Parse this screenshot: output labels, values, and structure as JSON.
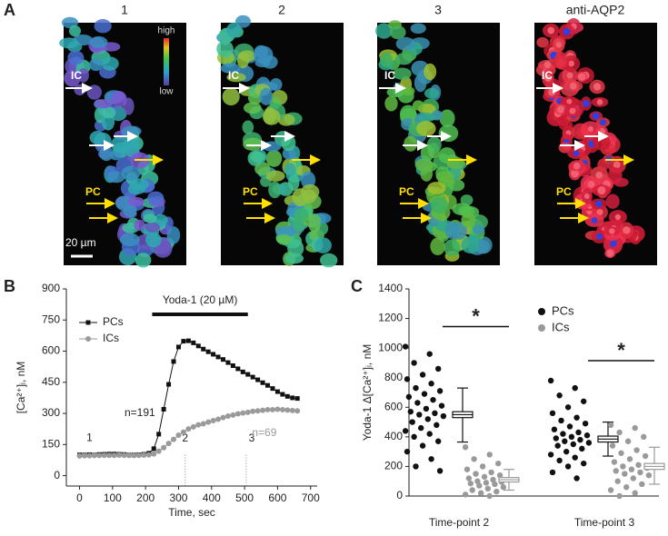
{
  "panel_labels": [
    "A",
    "B",
    "C"
  ],
  "panel_a": {
    "image_titles": [
      "1",
      "2",
      "3",
      "anti-AQP2"
    ],
    "colorbar": {
      "high": "high",
      "low": "low"
    },
    "labels": {
      "ic": "IC",
      "pc": "PC",
      "scale": "20 µm"
    }
  },
  "chart_data": [
    {
      "type": "line",
      "xlabel": "Time, sec",
      "ylabel": "[Ca²⁺]ᵢ, nM",
      "x": [
        0,
        15,
        30,
        45,
        60,
        75,
        90,
        105,
        120,
        135,
        150,
        165,
        180,
        195,
        210,
        225,
        240,
        255,
        270,
        285,
        300,
        315,
        330,
        345,
        360,
        375,
        390,
        405,
        420,
        435,
        450,
        465,
        480,
        495,
        510,
        525,
        540,
        555,
        570,
        585,
        600,
        615,
        630,
        645,
        660
      ],
      "series": [
        {
          "name": "PCs",
          "color": "#111111",
          "marker": "square",
          "values": [
            100,
            100,
            101,
            100,
            102,
            103,
            104,
            104,
            103,
            102,
            100,
            100,
            101,
            103,
            108,
            130,
            200,
            320,
            440,
            550,
            620,
            648,
            650,
            640,
            625,
            610,
            597,
            585,
            572,
            560,
            545,
            530,
            515,
            500,
            488,
            475,
            462,
            448,
            435,
            420,
            405,
            392,
            382,
            375,
            372
          ]
        },
        {
          "name": "ICs",
          "color": "#9a9a9a",
          "marker": "circle",
          "values": [
            95,
            96,
            96,
            97,
            97,
            98,
            98,
            98,
            99,
            98,
            97,
            97,
            98,
            99,
            100,
            105,
            118,
            135,
            155,
            175,
            195,
            210,
            225,
            235,
            245,
            250,
            258,
            265,
            272,
            280,
            287,
            292,
            298,
            302,
            305,
            310,
            312,
            315,
            318,
            318,
            320,
            318,
            316,
            314,
            312
          ]
        }
      ],
      "xlim": [
        -40,
        720
      ],
      "ylim": [
        -50,
        900
      ],
      "xticks": [
        0,
        100,
        200,
        300,
        400,
        500,
        600,
        700
      ],
      "yticks": [
        0,
        150,
        300,
        450,
        600,
        750,
        900
      ],
      "stimulus": {
        "label": "Yoda-1 (20 µM)",
        "start": 220,
        "end": 510
      },
      "time_points": [
        {
          "label": "1",
          "x": 30
        },
        {
          "label": "2",
          "x": 320
        },
        {
          "label": "3",
          "x": 505
        }
      ],
      "n_labels": [
        "n=191",
        "n=69"
      ]
    },
    {
      "type": "strip",
      "ylabel": "Yoda-1 Δ[Ca²⁺]ᵢ, nM",
      "categories": [
        "Time-point 2",
        "Time-point 3"
      ],
      "ylim": [
        0,
        1400
      ],
      "yticks": [
        0,
        200,
        400,
        600,
        800,
        1000,
        1200,
        1400
      ],
      "series": [
        {
          "name": "PCs",
          "color": "#111111",
          "groups": [
            {
              "points": [
                1010,
                960,
                900,
                860,
                820,
                790,
                760,
                730,
                710,
                690,
                670,
                650,
                630,
                610,
                590,
                570,
                560,
                550,
                540,
                520,
                500,
                480,
                460,
                440,
                420,
                400,
                370,
                340,
                300,
                250,
                200,
                170
              ],
              "mean": 550,
              "box": [
                530,
                570
              ],
              "whisker": [
                365,
                730
              ]
            },
            {
              "points": [
                780,
                730,
                680,
                640,
                600,
                560,
                530,
                510,
                490,
                470,
                450,
                430,
                420,
                410,
                400,
                390,
                380,
                370,
                360,
                350,
                340,
                320,
                300,
                280,
                260,
                240,
                220,
                200,
                160,
                120
              ],
              "mean": 385,
              "box": [
                365,
                405
              ],
              "whisker": [
                270,
                500
              ]
            }
          ]
        },
        {
          "name": "ICs",
          "color": "#9a9a9a",
          "groups": [
            {
              "points": [
                330,
                280,
                250,
                220,
                200,
                180,
                160,
                150,
                140,
                130,
                120,
                110,
                100,
                95,
                90,
                85,
                80,
                70,
                60,
                50,
                40,
                30,
                20,
                10,
                0
              ],
              "mean": 110,
              "box": [
                95,
                125
              ],
              "whisker": [
                40,
                180
              ]
            },
            {
              "points": [
                480,
                460,
                430,
                400,
                370,
                340,
                310,
                290,
                270,
                250,
                230,
                210,
                200,
                190,
                180,
                170,
                160,
                150,
                140,
                120,
                100,
                80,
                60,
                40,
                20,
                0
              ],
              "mean": 200,
              "box": [
                180,
                220
              ],
              "whisker": [
                80,
                330
              ]
            }
          ]
        }
      ],
      "significance": [
        "*",
        "*"
      ]
    }
  ]
}
